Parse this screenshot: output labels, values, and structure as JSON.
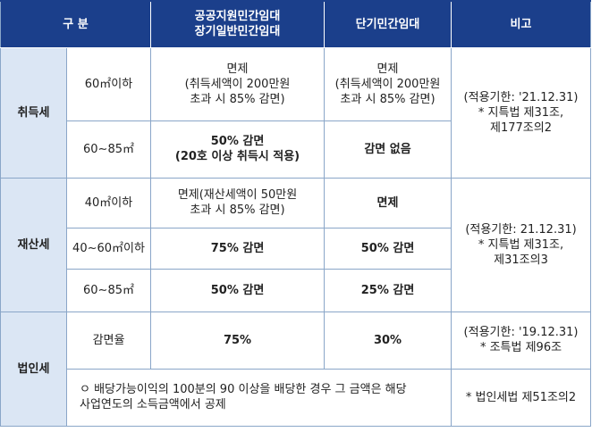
{
  "header": {
    "col1": "구    분",
    "col2": "공공지원민간임대\n장기일반민간임대",
    "col3": "단기민간임대",
    "col4": "비고"
  },
  "sections": {
    "acquisition": {
      "label": "취득세",
      "rows": [
        {
          "size": "60㎡이하",
          "long_title": "면제",
          "long_detail": "(취득세액이 200만원\n초과 시 85% 감면)",
          "short_title": "면제",
          "short_detail": "(취득세액이 200만원\n초과 시 85% 감면)"
        },
        {
          "size": "60∼85㎡",
          "long": "50% 감면\n(20호 이상 취득시 적용)",
          "short": "감면 없음"
        }
      ],
      "note": "(적용기한: '21.12.31)\n* 지특법 제31조,\n제177조의2"
    },
    "property": {
      "label": "재산세",
      "rows": [
        {
          "size": "40㎡이하",
          "long_title": "면제",
          "long_detail": "(재산세액이 50만원\n초과 시 85% 감면)",
          "short": "면제"
        },
        {
          "size": "40~60㎡이하",
          "long": "75% 감면",
          "short": "50% 감면"
        },
        {
          "size": "60∼85㎡",
          "long": "50% 감면",
          "short": "25% 감면"
        }
      ],
      "note": "(적용기한: 21.12.31)\n* 지특법 제31조,\n제31조의3"
    },
    "corporate": {
      "label": "법인세",
      "rows": [
        {
          "size": "감면율",
          "long": "75%",
          "short": "30%",
          "note": "(적용기한: '19.12.31)\n* 조특법 제96조"
        }
      ],
      "detail": "ㅇ 배당가능이익의 100분의 90 이상을 배당한 경우 그 금액은 해당\n   사업연도의 소득금액에서 공제",
      "detail_note": "* 법인세법 제51조의2"
    }
  }
}
